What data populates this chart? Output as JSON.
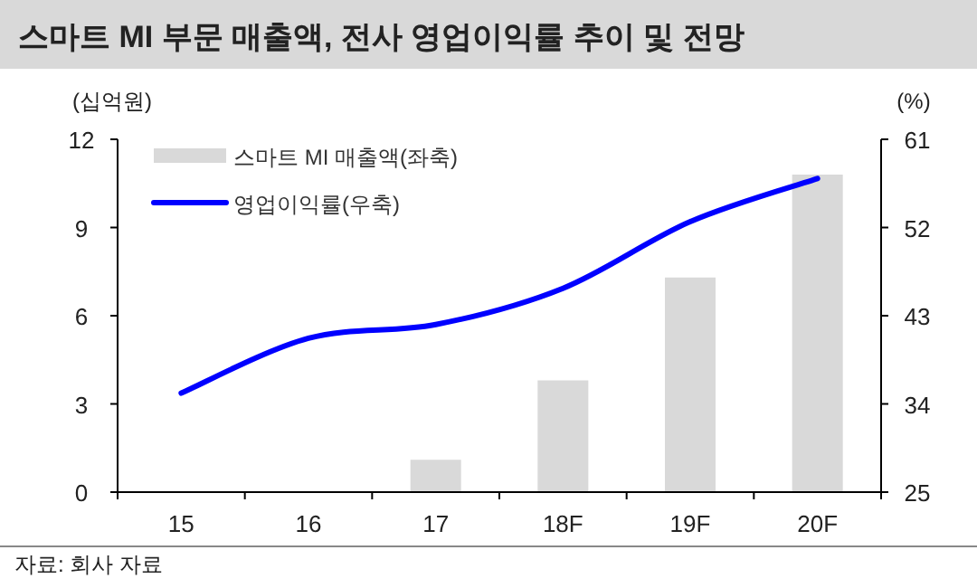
{
  "chart_data": {
    "type": "bar",
    "title": "스마트 MI 부문 매출액, 전사 영업이익률 추이 및 전망",
    "ylabel": "(십억원)",
    "y2label": "(%)",
    "categories": [
      "15",
      "16",
      "17",
      "18F",
      "19F",
      "20F"
    ],
    "series": [
      {
        "name": "스마트 MI 매출액(좌축)",
        "color": "#d9d9d9",
        "values": [
          null,
          null,
          1.1,
          3.8,
          7.3,
          10.8
        ]
      },
      {
        "name": "영업이익률(우축)",
        "type": "line",
        "axis": "y2",
        "color": "#0000ff",
        "values": [
          35.1,
          40.7,
          42.1,
          45.8,
          52.6,
          57.0
        ]
      }
    ],
    "ylim": [
      0,
      12
    ],
    "yticks": [
      0,
      3,
      6,
      9,
      12
    ],
    "y2lim": [
      25,
      61
    ],
    "y2ticks": [
      25,
      34,
      43,
      52,
      61
    ],
    "legend": "top left",
    "grid": false,
    "annotations": [
      "자료: 회사 자료"
    ]
  }
}
